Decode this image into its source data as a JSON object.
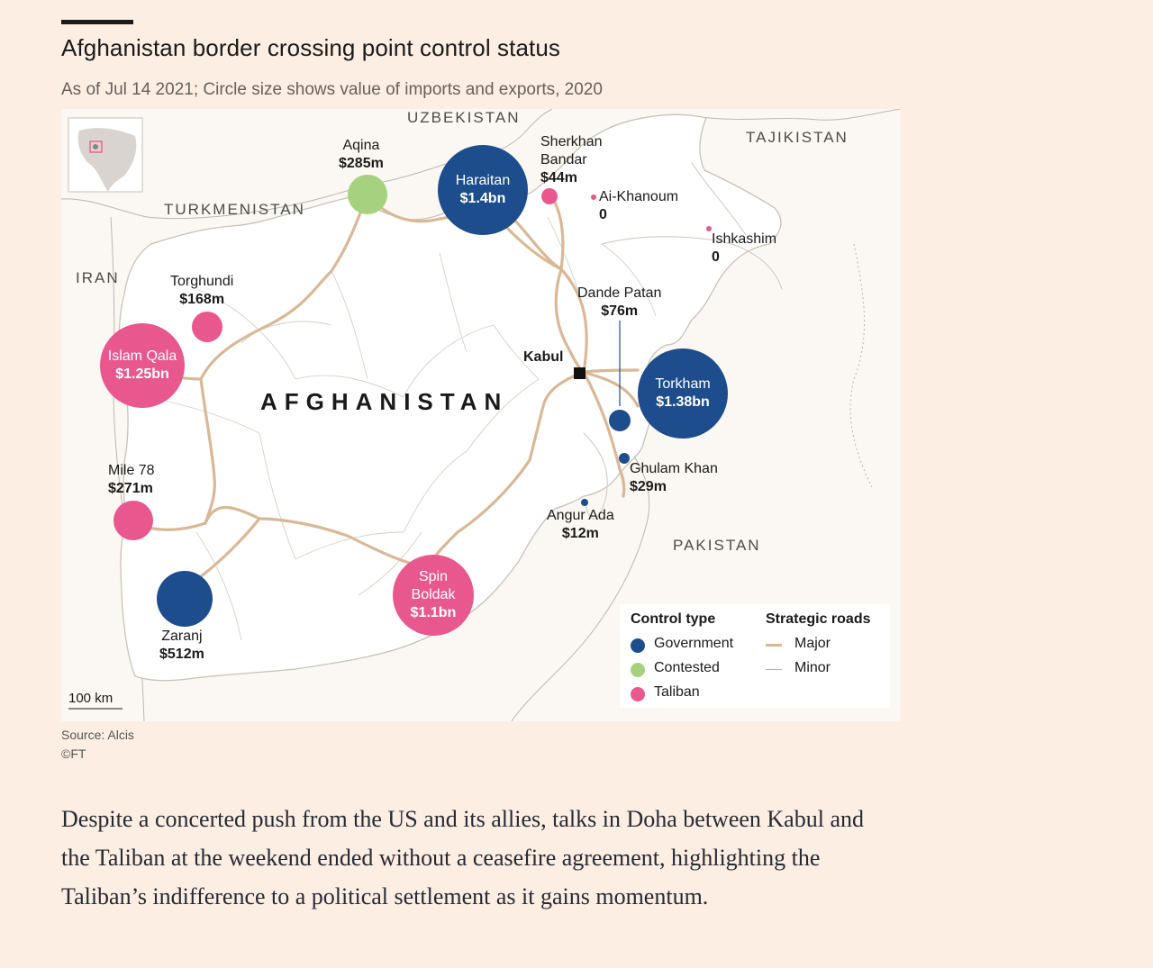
{
  "header": {
    "title": "Afghanistan border crossing point control status",
    "subtitle": "As of Jul 14 2021; Circle size shows value of imports and exports, 2020"
  },
  "map": {
    "countries": {
      "uzbekistan": "UZBEKISTAN",
      "tajikistan": "TAJIKISTAN",
      "turkmenistan": "TURKMENISTAN",
      "iran": "IRAN",
      "pakistan": "PAKISTAN",
      "afghanistan": "AFGHANISTAN"
    },
    "capital": "Kabul",
    "scale": "100 km",
    "colors": {
      "government": "#1d4d8c",
      "contested": "#a6d27f",
      "taliban": "#e8588e",
      "road": "#d9b896",
      "land": "#ffffff",
      "background": "#fbf7f2"
    },
    "crossings": [
      {
        "id": "aqina",
        "name": "Aqina",
        "value": "$285m",
        "control": "contested"
      },
      {
        "id": "haraitan",
        "name": "Haraitan",
        "value": "$1.4bn",
        "control": "government"
      },
      {
        "id": "sherkhan-bandar",
        "name": "Sherkhan Bandar",
        "name_line1": "Sherkhan",
        "name_line2": "Bandar",
        "value": "$44m",
        "control": "taliban"
      },
      {
        "id": "ai-khanoum",
        "name": "Ai-Khanoum",
        "value": "0",
        "control": "taliban"
      },
      {
        "id": "ishkashim",
        "name": "Ishkashim",
        "value": "0",
        "control": "taliban"
      },
      {
        "id": "torghundi",
        "name": "Torghundi",
        "value": "$168m",
        "control": "taliban"
      },
      {
        "id": "islam-qala",
        "name": "Islam Qala",
        "value": "$1.25bn",
        "control": "taliban"
      },
      {
        "id": "dande-patan",
        "name": "Dande Patan",
        "value": "$76m",
        "control": "government"
      },
      {
        "id": "torkham",
        "name": "Torkham",
        "value": "$1.38bn",
        "control": "government"
      },
      {
        "id": "ghulam-khan",
        "name": "Ghulam Khan",
        "value": "$29m",
        "control": "government"
      },
      {
        "id": "angur-ada",
        "name": "Angur Ada",
        "value": "$12m",
        "control": "government"
      },
      {
        "id": "mile-78",
        "name": "Mile 78",
        "value": "$271m",
        "control": "taliban"
      },
      {
        "id": "spin-boldak",
        "name": "Spin Boldak",
        "name_line1": "Spin",
        "name_line2": "Boldak",
        "value": "$1.1bn",
        "control": "taliban"
      },
      {
        "id": "zaranj",
        "name": "Zaranj",
        "value": "$512m",
        "control": "government"
      }
    ]
  },
  "legend": {
    "control_title": "Control type",
    "government": "Government",
    "contested": "Contested",
    "taliban": "Taliban",
    "roads_title": "Strategic roads",
    "major": "Major",
    "minor": "Minor"
  },
  "source": {
    "line1": "Source: Alcis",
    "line2": "©FT"
  },
  "article": {
    "paragraph": "Despite a concerted push from the US and its allies, talks in Doha between Kabul and the Taliban at the weekend ended without a ceasefire agreement, highlighting the Taliban’s indifference to a political settlement as it gains momentum."
  }
}
